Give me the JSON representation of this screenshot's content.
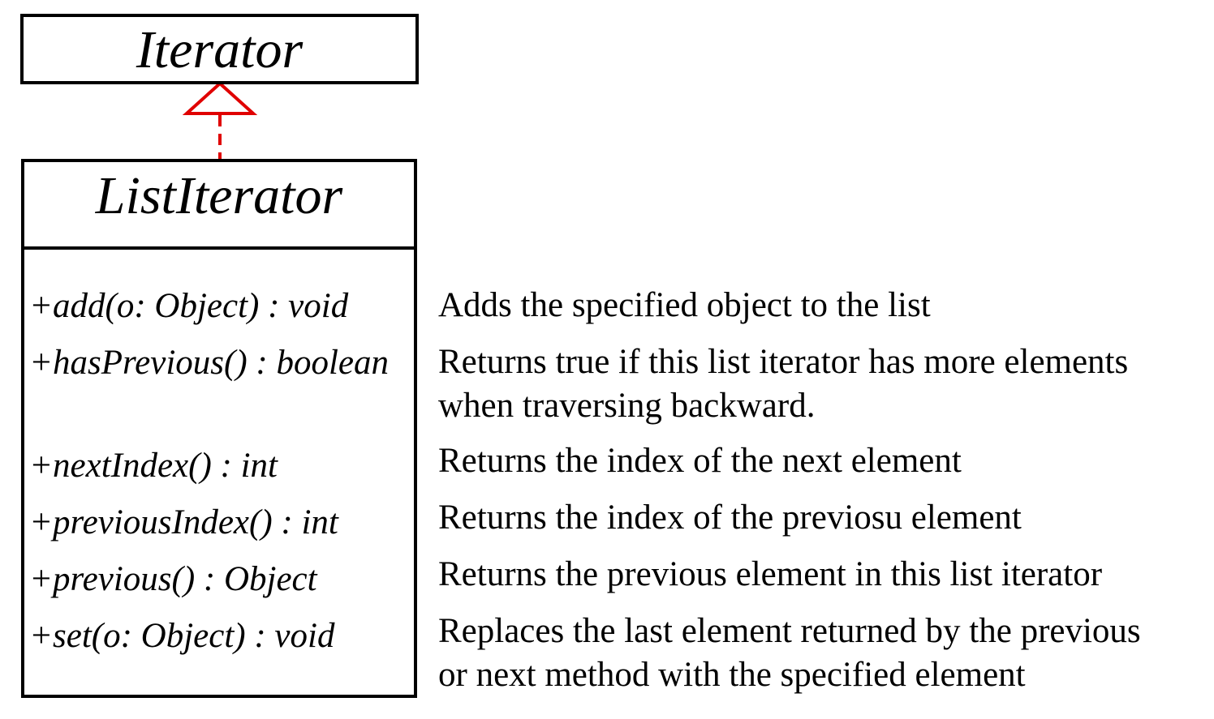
{
  "interface": {
    "name": "Iterator"
  },
  "class": {
    "name": "ListIterator",
    "methods": [
      {
        "signature": "+add(o: Object) : void",
        "description": [
          "Adds the specified object to the list"
        ]
      },
      {
        "signature": "+hasPrevious() : boolean",
        "description": [
          "Returns true if this list iterator has more elements",
          "when traversing backward."
        ]
      },
      {
        "signature": "+nextIndex() : int",
        "description": [
          "Returns the index of the next element"
        ]
      },
      {
        "signature": "+previousIndex() : int",
        "description": [
          "Returns the index of the previosu element"
        ]
      },
      {
        "signature": "+previous() : Object",
        "description": [
          "Returns the previous element in this list iterator"
        ]
      },
      {
        "signature": "+set(o: Object) : void",
        "description": [
          "Replaces the last element returned by the previous",
          "or next method with the specified element"
        ]
      }
    ]
  },
  "relationship": {
    "type": "realization",
    "color": "#e00000"
  }
}
